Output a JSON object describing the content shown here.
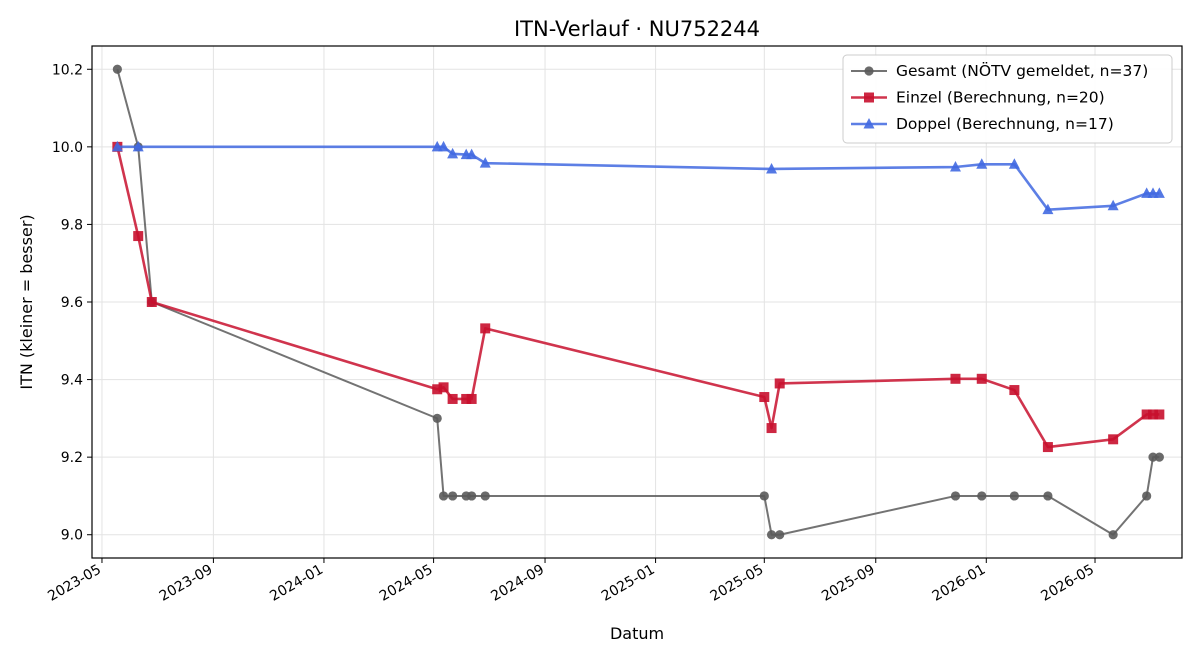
{
  "chart_data": {
    "type": "line",
    "title": "ITN-Verlauf · NU752244",
    "xlabel": "Datum",
    "ylabel": "ITN  (kleiner = besser)",
    "x_ticks": [
      "2023-05",
      "2023-09",
      "2024-01",
      "2024-05",
      "2024-09",
      "2025-01",
      "2025-05",
      "2025-09",
      "2026-01",
      "2026-05"
    ],
    "y_ticks": [
      "9.0",
      "9.2",
      "9.4",
      "9.6",
      "9.8",
      "10.0",
      "10.2"
    ],
    "ylim": [
      8.94,
      10.26
    ],
    "xlim": [
      "2023-04-20",
      "2026-08-05"
    ],
    "grid": true,
    "legend_position": "top-right",
    "series": [
      {
        "name": "Gesamt (NÖTV gemeldet, n=37)",
        "color": "#5a5a5a",
        "marker": "circle",
        "x": [
          "2023-05-18",
          "2023-06-10",
          "2023-06-25",
          "2024-05-05",
          "2024-05-12",
          "2024-05-22",
          "2024-06-06",
          "2024-06-12",
          "2024-06-27",
          "2025-05-01",
          "2025-05-09",
          "2025-05-18",
          "2025-11-28",
          "2025-12-27",
          "2026-02-01",
          "2026-03-10",
          "2026-05-21",
          "2026-06-27",
          "2026-07-04",
          "2026-07-11"
        ],
        "y": [
          10.2,
          10.0,
          9.6,
          9.3,
          9.1,
          9.1,
          9.1,
          9.1,
          9.1,
          9.1,
          9.0,
          9.0,
          9.1,
          9.1,
          9.1,
          9.1,
          9.0,
          9.1,
          9.2,
          9.2
        ]
      },
      {
        "name": "Einzel (Berechnung, n=20)",
        "color": "#c8102e",
        "marker": "square",
        "x": [
          "2023-05-18",
          "2023-06-10",
          "2023-06-25",
          "2024-05-05",
          "2024-05-12",
          "2024-05-22",
          "2024-06-06",
          "2024-06-12",
          "2024-06-27",
          "2025-05-01",
          "2025-05-09",
          "2025-05-18",
          "2025-11-28",
          "2025-12-27",
          "2026-02-01",
          "2026-03-10",
          "2026-05-21",
          "2026-06-27",
          "2026-07-04",
          "2026-07-11"
        ],
        "y": [
          10.0,
          9.77,
          9.6,
          9.375,
          9.38,
          9.35,
          9.35,
          9.35,
          9.532,
          9.355,
          9.275,
          9.39,
          9.402,
          9.402,
          9.373,
          9.226,
          9.246,
          9.31,
          9.31,
          9.31
        ]
      },
      {
        "name": "Doppel (Berechnung, n=17)",
        "color": "#4169e1",
        "marker": "triangle",
        "x": [
          "2023-05-18",
          "2023-06-10",
          "2024-05-05",
          "2024-05-12",
          "2024-05-22",
          "2024-06-06",
          "2024-06-12",
          "2024-06-27",
          "2025-05-09",
          "2025-11-28",
          "2025-12-27",
          "2026-02-01",
          "2026-03-10",
          "2026-05-21",
          "2026-06-27",
          "2026-07-04",
          "2026-07-11"
        ],
        "y": [
          10.0,
          10.0,
          10.0,
          10.0,
          9.982,
          9.98,
          9.98,
          9.958,
          9.943,
          9.948,
          9.955,
          9.955,
          9.838,
          9.848,
          9.88,
          9.88,
          9.88
        ]
      }
    ]
  }
}
